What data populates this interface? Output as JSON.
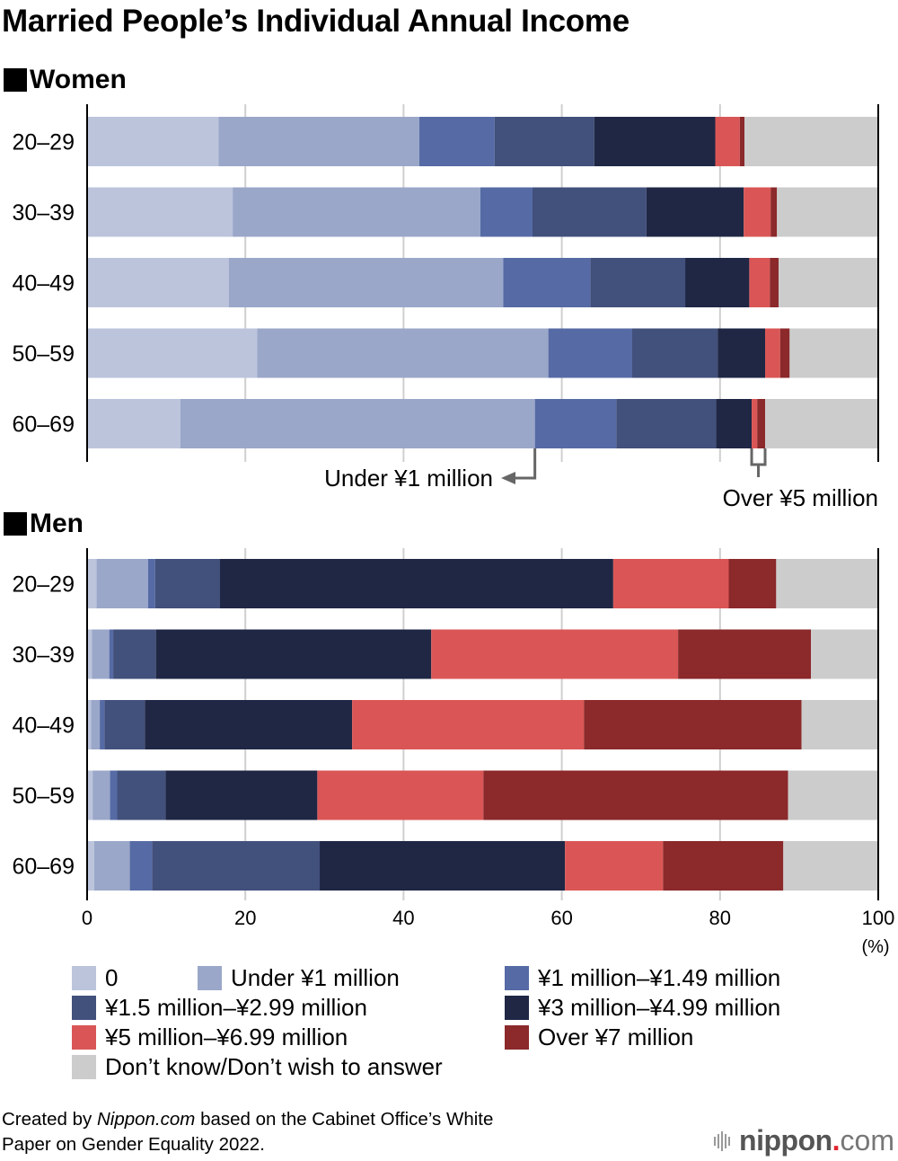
{
  "title": "Married People’s Individual Annual Income",
  "annotations": {
    "under_1m": "Under ¥1 million",
    "over_5m": "Over ¥5 million"
  },
  "source": {
    "prefix": "Created by ",
    "italic": "Nippon.com",
    "suffix": " based on the Cabinet Office’s White",
    "line2": "Paper on Gender Equality 2022."
  },
  "logo": {
    "word": "nippon",
    "dot": ".",
    "com": "com"
  },
  "colors": {
    "zero": "#bcc4dc",
    "under_1m": "#9aa7c9",
    "1m_1_49m": "#566ba5",
    "1_5m_2_99m": "#42507c",
    "3m_4_99m": "#1f2745",
    "5m_6_99m": "#da5656",
    "over_7m": "#8b292b",
    "dont_know": "#cccccc"
  },
  "chart_data": {
    "type": "bar",
    "orientation": "horizontal-stacked",
    "title": "Married People’s Individual Annual Income",
    "xlabel": "(%)",
    "xlim": [
      0,
      100
    ],
    "xticks": [
      "0",
      "20",
      "40",
      "60",
      "80",
      "100"
    ],
    "grid": true,
    "legend_placement": "bottom",
    "legend": [
      {
        "key": "zero",
        "label": "0"
      },
      {
        "key": "under_1m",
        "label": "Under ¥1 million"
      },
      {
        "key": "1m_1_49m",
        "label": "¥1 million–¥1.49 million"
      },
      {
        "key": "1_5m_2_99m",
        "label": "¥1.5 million–¥2.99 million"
      },
      {
        "key": "3m_4_99m",
        "label": "¥3 million–¥4.99 million"
      },
      {
        "key": "5m_6_99m",
        "label": "¥5 million–¥6.99 million"
      },
      {
        "key": "over_7m",
        "label": "Over ¥7 million"
      },
      {
        "key": "dont_know",
        "label": "Don’t know/Don’t wish to answer"
      }
    ],
    "panels": [
      {
        "name": "Women",
        "categories": [
          "20–29",
          "30–39",
          "40–49",
          "50–59",
          "60–69"
        ],
        "series": [
          {
            "name": "0",
            "values": [
              16.6,
              18.4,
              17.9,
              21.5,
              11.8
            ]
          },
          {
            "name": "Under ¥1 million",
            "values": [
              25.4,
              31.3,
              34.7,
              36.8,
              44.8
            ]
          },
          {
            "name": "¥1 million–¥1.49 million",
            "values": [
              9.5,
              6.6,
              11.0,
              10.6,
              10.3
            ]
          },
          {
            "name": "¥1.5 million–¥2.99 million",
            "values": [
              12.6,
              14.4,
              12.0,
              10.8,
              12.6
            ]
          },
          {
            "name": "¥3 million–¥4.99 million",
            "values": [
              15.3,
              12.3,
              8.1,
              6.0,
              4.5
            ]
          },
          {
            "name": "¥5 million–¥6.99 million",
            "values": [
              3.1,
              3.4,
              2.6,
              1.9,
              0.7
            ]
          },
          {
            "name": "Over ¥7 million",
            "values": [
              0.6,
              0.8,
              1.1,
              1.2,
              1.0
            ]
          },
          {
            "name": "Don’t know/Don’t wish to answer",
            "values": [
              16.9,
              12.8,
              12.6,
              11.2,
              14.2
            ]
          }
        ]
      },
      {
        "name": "Men",
        "categories": [
          "20–29",
          "30–39",
          "40–49",
          "50–59",
          "60–69"
        ],
        "series": [
          {
            "name": "0",
            "values": [
              1.2,
              0.6,
              0.5,
              0.7,
              0.9
            ]
          },
          {
            "name": "Under ¥1 million",
            "values": [
              6.5,
              2.2,
              1.1,
              2.2,
              4.5
            ]
          },
          {
            "name": "¥1 million–¥1.49 million",
            "values": [
              0.9,
              0.5,
              0.6,
              0.9,
              2.8
            ]
          },
          {
            "name": "¥1.5 million–¥2.99 million",
            "values": [
              8.2,
              5.4,
              5.1,
              6.1,
              21.2
            ]
          },
          {
            "name": "¥3 million–¥4.99 million",
            "values": [
              49.7,
              34.8,
              26.2,
              19.2,
              31.0
            ]
          },
          {
            "name": "¥5 million–¥6.99 million",
            "values": [
              14.6,
              31.2,
              29.3,
              21.0,
              12.4
            ]
          },
          {
            "name": "Over ¥7 million",
            "values": [
              6.0,
              16.8,
              27.5,
              38.5,
              15.2
            ]
          },
          {
            "name": "Don’t know/Don’t wish to answer",
            "values": [
              12.8,
              8.5,
              9.8,
              11.5,
              11.9
            ]
          }
        ]
      }
    ]
  }
}
